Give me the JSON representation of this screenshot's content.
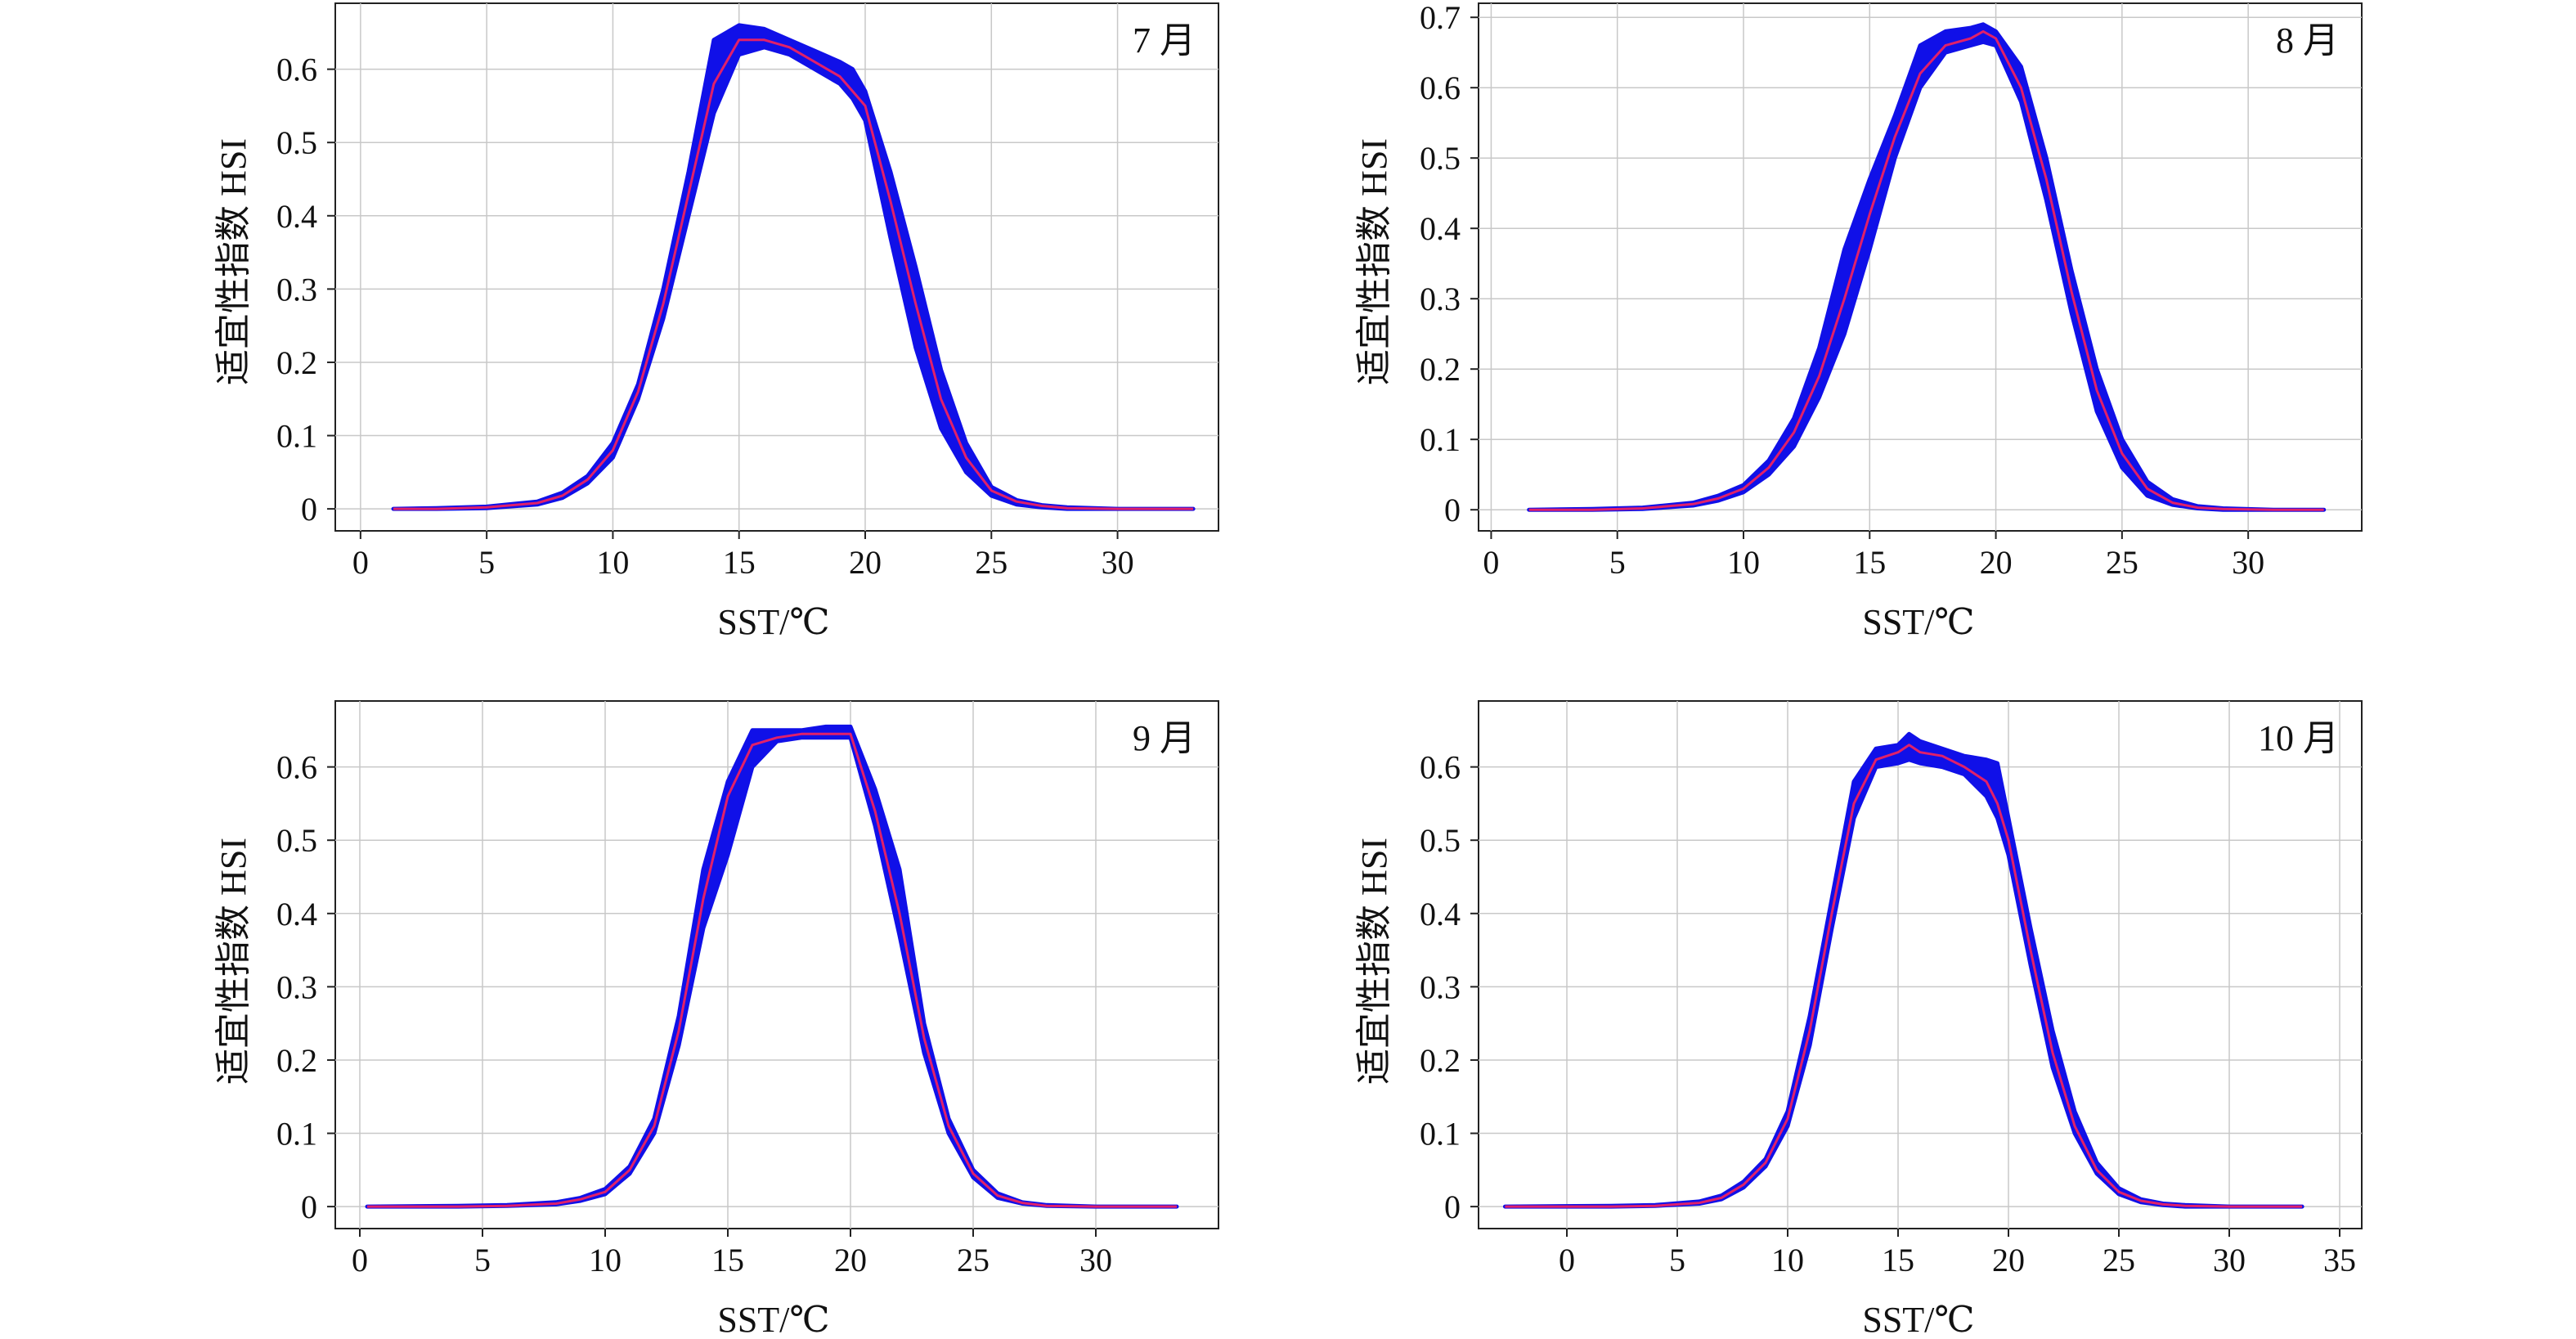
{
  "figure": {
    "panels": [
      {
        "label": "7 月",
        "ylabel": "适宜性指数 HSI",
        "xlabel": "SST/℃"
      },
      {
        "label": "8 月",
        "ylabel": "适宜性指数 HSI",
        "xlabel": "SST/℃"
      },
      {
        "label": "9 月",
        "ylabel": "适宜性指数 HSI",
        "xlabel": "SST/℃"
      },
      {
        "label": "10 月",
        "ylabel": "适宜性指数 HSI",
        "xlabel": "SST/℃"
      }
    ]
  },
  "colors": {
    "band": "#1010e8",
    "mean_line": "#e0206a",
    "grid": "#c8c8c8",
    "axis": "#222222"
  },
  "chart_data": [
    {
      "type": "area",
      "label": "7 月",
      "xlabel": "SST/℃",
      "ylabel": "适宜性指数 HSI",
      "xlim": [
        -1,
        34
      ],
      "ylim": [
        -0.03,
        0.69
      ],
      "xticks": [
        0,
        5,
        10,
        15,
        20,
        25,
        30
      ],
      "yticks": [
        0,
        0.1,
        0.2,
        0.3,
        0.4,
        0.5,
        0.6
      ],
      "ytick_labels": [
        "0",
        "0.1",
        "0.2",
        "0.3",
        "0.4",
        "0.5",
        "0.6"
      ],
      "grid": true,
      "x": [
        1.3,
        3,
        5,
        7,
        8,
        9,
        10,
        11,
        12,
        13,
        14,
        15,
        16,
        17,
        18,
        19,
        19.5,
        20,
        21,
        22,
        23,
        24,
        25,
        26,
        27,
        28,
        30,
        33
      ],
      "mean": [
        0,
        0,
        0.002,
        0.008,
        0.018,
        0.04,
        0.08,
        0.16,
        0.28,
        0.43,
        0.58,
        0.64,
        0.64,
        0.63,
        0.61,
        0.59,
        0.57,
        0.55,
        0.42,
        0.28,
        0.15,
        0.07,
        0.025,
        0.01,
        0.004,
        0.001,
        0,
        0
      ],
      "lower": [
        0,
        0,
        0.001,
        0.006,
        0.015,
        0.035,
        0.07,
        0.15,
        0.26,
        0.4,
        0.54,
        0.62,
        0.63,
        0.62,
        0.6,
        0.58,
        0.56,
        0.53,
        0.37,
        0.22,
        0.11,
        0.05,
        0.018,
        0.006,
        0.002,
        0,
        0,
        0
      ],
      "upper": [
        0,
        0.001,
        0.003,
        0.01,
        0.022,
        0.045,
        0.09,
        0.17,
        0.3,
        0.46,
        0.64,
        0.66,
        0.655,
        0.64,
        0.625,
        0.61,
        0.6,
        0.57,
        0.46,
        0.33,
        0.19,
        0.09,
        0.03,
        0.012,
        0.005,
        0.002,
        0,
        0
      ]
    },
    {
      "type": "area",
      "label": "8 月",
      "xlabel": "SST/℃",
      "ylabel": "适宜性指数 HSI",
      "xlim": [
        -0.5,
        34.5
      ],
      "ylim": [
        -0.03,
        0.72
      ],
      "xticks": [
        0,
        5,
        10,
        15,
        20,
        25,
        30
      ],
      "yticks": [
        0,
        0.1,
        0.2,
        0.3,
        0.4,
        0.5,
        0.6,
        0.7
      ],
      "ytick_labels": [
        "0",
        "0.1",
        "0.2",
        "0.3",
        "0.4",
        "0.5",
        "0.6",
        "0.7"
      ],
      "grid": true,
      "x": [
        1.5,
        4,
        6,
        8,
        9,
        10,
        11,
        12,
        13,
        14,
        15,
        16,
        17,
        18,
        19,
        19.5,
        20,
        21,
        22,
        23,
        24,
        25,
        26,
        27,
        28,
        29,
        31,
        33
      ],
      "mean": [
        0,
        0,
        0.002,
        0.008,
        0.016,
        0.03,
        0.06,
        0.11,
        0.19,
        0.3,
        0.42,
        0.53,
        0.62,
        0.66,
        0.67,
        0.68,
        0.67,
        0.6,
        0.47,
        0.31,
        0.17,
        0.08,
        0.03,
        0.01,
        0.003,
        0.001,
        0,
        0
      ],
      "lower": [
        0,
        0,
        0.001,
        0.006,
        0.013,
        0.025,
        0.05,
        0.09,
        0.16,
        0.25,
        0.37,
        0.5,
        0.6,
        0.65,
        0.66,
        0.665,
        0.66,
        0.58,
        0.44,
        0.28,
        0.14,
        0.06,
        0.02,
        0.007,
        0.002,
        0,
        0,
        0
      ],
      "upper": [
        0,
        0.001,
        0.003,
        0.01,
        0.02,
        0.035,
        0.07,
        0.13,
        0.23,
        0.37,
        0.47,
        0.56,
        0.66,
        0.68,
        0.685,
        0.69,
        0.68,
        0.63,
        0.5,
        0.34,
        0.2,
        0.1,
        0.04,
        0.015,
        0.005,
        0.002,
        0,
        0
      ]
    },
    {
      "type": "area",
      "label": "9 月",
      "xlabel": "SST/℃",
      "ylabel": "适宜性指数 HSI",
      "xlim": [
        -1,
        35
      ],
      "ylim": [
        -0.03,
        0.69
      ],
      "xticks": [
        0,
        5,
        10,
        15,
        20,
        25,
        30
      ],
      "yticks": [
        0,
        0.1,
        0.2,
        0.3,
        0.4,
        0.5,
        0.6
      ],
      "ytick_labels": [
        "0",
        "0.1",
        "0.2",
        "0.3",
        "0.4",
        "0.5",
        "0.6"
      ],
      "grid": true,
      "x": [
        0.3,
        4,
        6,
        8,
        9,
        10,
        11,
        12,
        13,
        14,
        15,
        16,
        17,
        18,
        19,
        20,
        21,
        22,
        23,
        24,
        25,
        26,
        27,
        28,
        30,
        33.3
      ],
      "mean": [
        0,
        0,
        0.001,
        0.004,
        0.01,
        0.02,
        0.05,
        0.11,
        0.24,
        0.42,
        0.56,
        0.63,
        0.64,
        0.645,
        0.645,
        0.645,
        0.54,
        0.4,
        0.23,
        0.11,
        0.045,
        0.015,
        0.005,
        0.001,
        0,
        0
      ],
      "lower": [
        0,
        0,
        0.001,
        0.003,
        0.008,
        0.017,
        0.045,
        0.1,
        0.22,
        0.38,
        0.48,
        0.6,
        0.635,
        0.64,
        0.64,
        0.64,
        0.52,
        0.37,
        0.21,
        0.1,
        0.04,
        0.012,
        0.004,
        0.001,
        0,
        0
      ],
      "upper": [
        0,
        0.001,
        0.002,
        0.006,
        0.012,
        0.024,
        0.055,
        0.12,
        0.26,
        0.46,
        0.58,
        0.65,
        0.65,
        0.65,
        0.655,
        0.655,
        0.57,
        0.46,
        0.25,
        0.12,
        0.05,
        0.018,
        0.006,
        0.002,
        0,
        0
      ]
    },
    {
      "type": "area",
      "label": "10 月",
      "xlabel": "SST/℃",
      "ylabel": "适宜性指数 HSI",
      "xlim": [
        -4,
        36
      ],
      "ylim": [
        -0.03,
        0.69
      ],
      "xticks": [
        0,
        5,
        10,
        15,
        20,
        25,
        30,
        35
      ],
      "yticks": [
        0,
        0.1,
        0.2,
        0.3,
        0.4,
        0.5,
        0.6
      ],
      "ytick_labels": [
        "0",
        "0.1",
        "0.2",
        "0.3",
        "0.4",
        "0.5",
        "0.6"
      ],
      "grid": true,
      "x": [
        -2.8,
        2,
        4,
        6,
        7,
        8,
        9,
        10,
        11,
        12,
        13,
        14,
        15,
        15.5,
        16,
        17,
        18,
        19,
        19.5,
        20,
        21,
        22,
        23,
        24,
        25,
        26,
        27,
        28,
        30,
        33.3
      ],
      "mean": [
        0,
        0,
        0.001,
        0.005,
        0.012,
        0.03,
        0.06,
        0.12,
        0.24,
        0.4,
        0.55,
        0.61,
        0.62,
        0.63,
        0.62,
        0.615,
        0.6,
        0.58,
        0.55,
        0.5,
        0.35,
        0.21,
        0.11,
        0.05,
        0.02,
        0.008,
        0.003,
        0.001,
        0,
        0
      ],
      "lower": [
        0,
        0,
        0.001,
        0.004,
        0.01,
        0.026,
        0.055,
        0.11,
        0.22,
        0.38,
        0.53,
        0.6,
        0.605,
        0.61,
        0.605,
        0.6,
        0.59,
        0.56,
        0.53,
        0.48,
        0.33,
        0.19,
        0.1,
        0.045,
        0.017,
        0.006,
        0.002,
        0,
        0,
        0
      ],
      "upper": [
        0,
        0.001,
        0.002,
        0.007,
        0.015,
        0.034,
        0.065,
        0.13,
        0.26,
        0.42,
        0.58,
        0.625,
        0.63,
        0.645,
        0.635,
        0.625,
        0.615,
        0.61,
        0.605,
        0.53,
        0.38,
        0.24,
        0.13,
        0.06,
        0.025,
        0.01,
        0.004,
        0.002,
        0,
        0
      ]
    }
  ]
}
